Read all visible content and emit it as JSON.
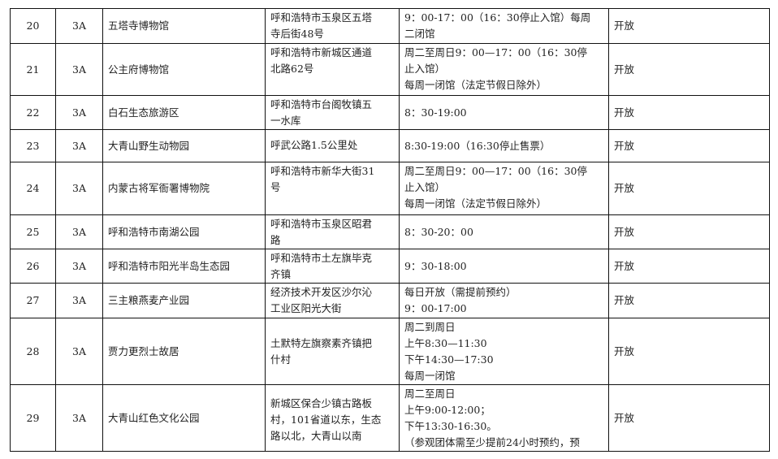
{
  "rows": [
    {
      "no": "20",
      "level": "3A",
      "name": "五塔寺博物馆",
      "address": [
        "呼和浩特市玉泉区五塔",
        "寺后街48号"
      ],
      "hours": [
        "9：00-17：00（16：30停止入馆）每周",
        "二闭馆"
      ],
      "status": "开放"
    },
    {
      "no": "21",
      "level": "3A",
      "name": "公主府博物馆",
      "address": [
        "呼和浩特市新城区通道",
        "北路62号"
      ],
      "hours": [
        "周二至周日9：00—17：00（16：30停",
        "止入馆）",
        "每周一闭馆（法定节假日除外）"
      ],
      "status": "开放"
    },
    {
      "no": "22",
      "level": "3A",
      "name": "白石生态旅游区",
      "address": [
        "呼和浩特市台阁牧镇五",
        "一水库"
      ],
      "hours": [
        "8：30-19:00"
      ],
      "status": "开放"
    },
    {
      "no": "23",
      "level": "3A",
      "name": "大青山野生动物园",
      "address": [
        "呼武公路1.5公里处"
      ],
      "hours": [
        "8:30-19:00（16:30停止售票）"
      ],
      "status": "开放"
    },
    {
      "no": "24",
      "level": "3A",
      "name": "内蒙古将军衙署博物院",
      "address": [
        "呼和浩特市新华大街31",
        "号"
      ],
      "hours": [
        "周二至周日9：00—17：00（16：30停",
        "止入馆）",
        "每周一闭馆（法定节假日除外）"
      ],
      "status": "开放"
    },
    {
      "no": "25",
      "level": "3A",
      "name": "呼和浩特市南湖公园",
      "address": [
        "呼和浩特市玉泉区昭君",
        "路"
      ],
      "hours": [
        "8：30-20：00"
      ],
      "status": "开放"
    },
    {
      "no": "26",
      "level": "3A",
      "name": "呼和浩特市阳光半岛生态园",
      "address": [
        "呼和浩特市土左旗毕克",
        "齐镇"
      ],
      "hours": [
        "9：30-18:00"
      ],
      "status": "开放"
    },
    {
      "no": "27",
      "level": "3A",
      "name": "三主粮燕麦产业园",
      "address": [
        "经济技术开发区沙尔沁",
        "工业区阳光大街"
      ],
      "hours": [
        "每日开放（需提前预约）",
        "9：00-17:00"
      ],
      "status": "开放"
    },
    {
      "no": "28",
      "level": "3A",
      "name": "贾力更烈士故居",
      "address": [
        "土默特左旗察素齐镇把",
        "什村"
      ],
      "hours": [
        "周二到周日",
        "上午8:30—11:30",
        "下午14:30—17:30",
        "每周一闭馆"
      ],
      "status": "开放"
    },
    {
      "no": "29",
      "level": "3A",
      "name": "大青山红色文化公园",
      "address": [
        "新城区保合少镇古路板",
        "村，101省道以东，生态",
        "路以北，大青山以南"
      ],
      "hours": [
        "周二至周日",
        "上午9:00-12:00；",
        "下午13:30-16:30。",
        "（参观团体需至少提前24小时预约，预"
      ],
      "status": "开放"
    }
  ]
}
